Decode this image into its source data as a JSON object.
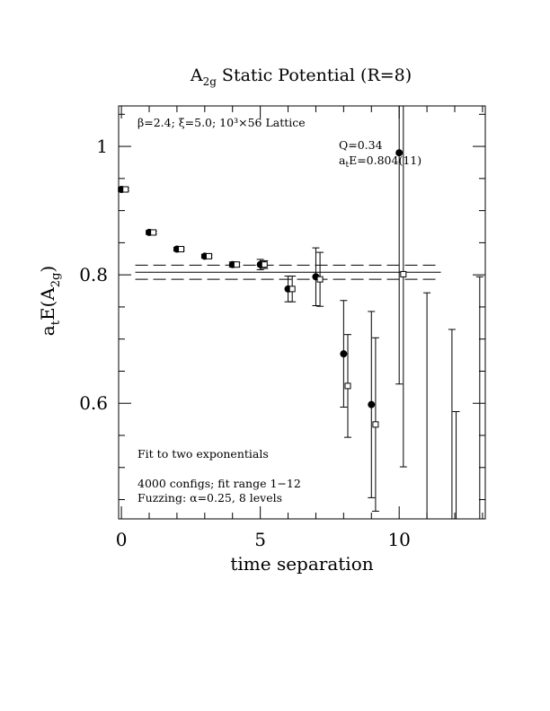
{
  "chart_data": {
    "type": "scatter",
    "title_main": "A",
    "title_sub": "2g",
    "title_rest": " Static Potential (R=8)",
    "xlabel": "time separation",
    "ylabel_main": "a",
    "ylabel_sub1": "t",
    "ylabel_mid": "E(A",
    "ylabel_sub2": "2g",
    "ylabel_end": ")",
    "xlim": [
      -0.1,
      13.1
    ],
    "ylim": [
      0.42,
      1.063
    ],
    "x_major_ticks": [
      0,
      5,
      10
    ],
    "x_tick_labels": [
      "0",
      "5",
      "10"
    ],
    "y_major_ticks": [
      0.6,
      0.8,
      1.0
    ],
    "y_tick_labels": [
      "0.6",
      "0.8",
      "1"
    ],
    "params_label": "β=2.4; ξ=5.0; 10³×56 Lattice",
    "fit_q": "Q=0.34",
    "fit_energy_main": "a",
    "fit_energy_sub": "t",
    "fit_energy_rest": "E=0.804(11)",
    "note_fit": "Fit to two exponentials",
    "note_configs": "4000 configs; fit range 1−12",
    "note_fuzzing": "Fuzzing: α=0.25, 8 levels",
    "fit": {
      "value": 0.804,
      "error": 0.011,
      "t_start": 0.5,
      "t_end": 11.5
    },
    "series": [
      {
        "marker": "filled-circle",
        "points": [
          {
            "x": 0,
            "y": 0.933,
            "err": 0.003
          },
          {
            "x": 1,
            "y": 0.866,
            "err": 0.003
          },
          {
            "x": 2,
            "y": 0.84,
            "err": 0.003
          },
          {
            "x": 3,
            "y": 0.829,
            "err": 0.003
          },
          {
            "x": 4,
            "y": 0.816,
            "err": 0.004
          },
          {
            "x": 5,
            "y": 0.816,
            "err": 0.008
          },
          {
            "x": 6,
            "y": 0.778,
            "err": 0.02
          },
          {
            "x": 7,
            "y": 0.797,
            "err": 0.045
          },
          {
            "x": 8,
            "y": 0.677,
            "err": 0.083
          },
          {
            "x": 9,
            "y": 0.598,
            "err": 0.145
          },
          {
            "x": 10,
            "y": 0.99,
            "err": 0.36
          }
        ]
      },
      {
        "marker": "open-square",
        "points": [
          {
            "x": 0.15,
            "y": 0.933,
            "err": 0.002
          },
          {
            "x": 1.15,
            "y": 0.866,
            "err": 0.002
          },
          {
            "x": 2.15,
            "y": 0.84,
            "err": 0.002
          },
          {
            "x": 3.15,
            "y": 0.829,
            "err": 0.002
          },
          {
            "x": 4.15,
            "y": 0.816,
            "err": 0.003
          },
          {
            "x": 5.15,
            "y": 0.816,
            "err": 0.006
          },
          {
            "x": 6.15,
            "y": 0.778,
            "err": 0.02
          },
          {
            "x": 7.15,
            "y": 0.793,
            "err": 0.042
          },
          {
            "x": 8.15,
            "y": 0.627,
            "err": 0.08
          },
          {
            "x": 9.15,
            "y": 0.567,
            "err": 0.135
          },
          {
            "x": 10.15,
            "y": 0.801,
            "err": 0.3
          }
        ]
      }
    ],
    "bars_only": [
      {
        "x": 11.0,
        "top": 0.772,
        "bottom": 0.42
      },
      {
        "x": 11.9,
        "top": 0.715,
        "bottom": 0.42
      },
      {
        "x": 12.05,
        "top": 0.587,
        "bottom": 0.42
      },
      {
        "x": 12.9,
        "top": 0.797,
        "bottom": 0.42
      }
    ]
  }
}
